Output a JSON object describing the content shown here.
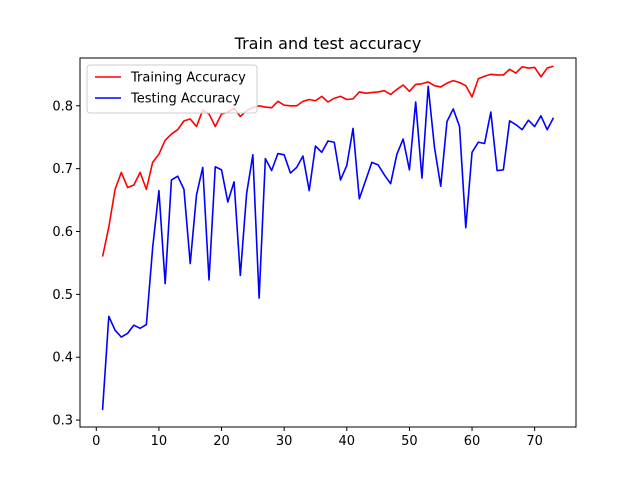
{
  "chart_data": {
    "type": "line",
    "title": "Train and test accuracy",
    "xlabel": "",
    "ylabel": "",
    "xlim": [
      -2.6,
      76.6
    ],
    "ylim": [
      0.289,
      0.876
    ],
    "xticks": [
      0,
      10,
      20,
      30,
      40,
      50,
      60,
      70
    ],
    "yticks": [
      0.3,
      0.4,
      0.5,
      0.6,
      0.7,
      0.8
    ],
    "grid": false,
    "legend_position": "top-left",
    "x": [
      1,
      2,
      3,
      4,
      5,
      6,
      7,
      8,
      9,
      10,
      11,
      12,
      13,
      14,
      15,
      16,
      17,
      18,
      19,
      20,
      21,
      22,
      23,
      24,
      25,
      26,
      27,
      28,
      29,
      30,
      31,
      32,
      33,
      34,
      35,
      36,
      37,
      38,
      39,
      40,
      41,
      42,
      43,
      44,
      45,
      46,
      47,
      48,
      49,
      50,
      51,
      52,
      53,
      54,
      55,
      56,
      57,
      58,
      59,
      60,
      61,
      62,
      63,
      64,
      65,
      66,
      67,
      68,
      69,
      70,
      71,
      72,
      73
    ],
    "series": [
      {
        "name": "Training Accuracy",
        "color": "#ff0000",
        "values": [
          0.56,
          0.607,
          0.667,
          0.694,
          0.67,
          0.674,
          0.694,
          0.667,
          0.71,
          0.723,
          0.745,
          0.755,
          0.762,
          0.776,
          0.779,
          0.767,
          0.793,
          0.787,
          0.767,
          0.787,
          0.79,
          0.796,
          0.783,
          0.792,
          0.797,
          0.8,
          0.798,
          0.797,
          0.807,
          0.801,
          0.8,
          0.8,
          0.807,
          0.81,
          0.808,
          0.815,
          0.806,
          0.812,
          0.815,
          0.81,
          0.811,
          0.822,
          0.82,
          0.821,
          0.822,
          0.824,
          0.818,
          0.826,
          0.833,
          0.823,
          0.834,
          0.835,
          0.838,
          0.832,
          0.83,
          0.836,
          0.84,
          0.837,
          0.832,
          0.814,
          0.843,
          0.847,
          0.85,
          0.849,
          0.849,
          0.858,
          0.852,
          0.862,
          0.86,
          0.861,
          0.846,
          0.86,
          0.863
        ]
      },
      {
        "name": "Testing Accuracy",
        "color": "#0000ff",
        "values": [
          0.316,
          0.465,
          0.443,
          0.432,
          0.438,
          0.451,
          0.446,
          0.452,
          0.574,
          0.665,
          0.517,
          0.682,
          0.688,
          0.667,
          0.549,
          0.658,
          0.702,
          0.523,
          0.703,
          0.698,
          0.647,
          0.679,
          0.53,
          0.66,
          0.722,
          0.494,
          0.716,
          0.697,
          0.724,
          0.722,
          0.693,
          0.702,
          0.72,
          0.665,
          0.736,
          0.726,
          0.744,
          0.742,
          0.682,
          0.705,
          0.764,
          0.652,
          0.681,
          0.71,
          0.706,
          0.69,
          0.676,
          0.723,
          0.747,
          0.698,
          0.806,
          0.685,
          0.831,
          0.734,
          0.672,
          0.775,
          0.795,
          0.767,
          0.606,
          0.726,
          0.742,
          0.74,
          0.79,
          0.697,
          0.698,
          0.776,
          0.77,
          0.762,
          0.777,
          0.767,
          0.784,
          0.762,
          0.781
        ]
      }
    ]
  }
}
